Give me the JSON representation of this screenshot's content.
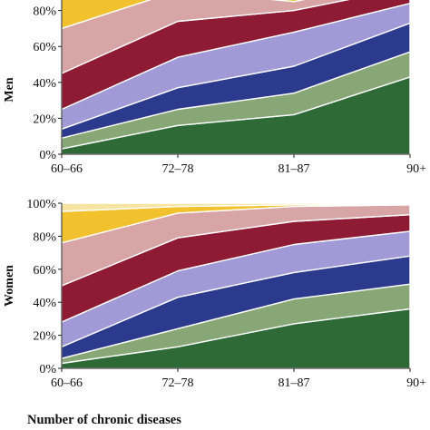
{
  "chart_data": [
    {
      "type": "area",
      "stacked": true,
      "title": "",
      "ylabel": "Men",
      "xlabel": "",
      "ylim": [
        0,
        100
      ],
      "y_unit": "%",
      "grid": false,
      "categories": [
        "60–66",
        "72–78",
        "81–87",
        "90+"
      ],
      "yticks": [
        "0%",
        "20%",
        "40%",
        "60%",
        "80%"
      ],
      "series": [
        {
          "color": "#2d6a35",
          "values": [
            3,
            16,
            22,
            43
          ]
        },
        {
          "color": "#88a777",
          "values": [
            6,
            9,
            12,
            14
          ]
        },
        {
          "color": "#2b3a8c",
          "values": [
            5,
            12,
            15,
            16
          ]
        },
        {
          "color": "#a29ad6",
          "values": [
            11,
            17,
            19,
            11
          ]
        },
        {
          "color": "#8e1a34",
          "values": [
            20,
            20,
            12,
            9
          ]
        },
        {
          "color": "#d8a5a6",
          "values": [
            25,
            17,
            5,
            5
          ]
        },
        {
          "color": "#f2c22e",
          "values": [
            28,
            2,
            2,
            1
          ]
        },
        {
          "color": "#f6e4a2",
          "values": [
            2,
            7,
            13,
            1
          ]
        }
      ]
    },
    {
      "type": "area",
      "stacked": true,
      "title": "",
      "ylabel": "Women",
      "xlabel": "Number of chronic diseases",
      "ylim": [
        0,
        100
      ],
      "y_unit": "%",
      "grid": false,
      "categories": [
        "60–66",
        "72–78",
        "81–87",
        "90+"
      ],
      "yticks": [
        "0%",
        "20%",
        "40%",
        "60%",
        "80%",
        "100%"
      ],
      "series": [
        {
          "color": "#2d6a35",
          "values": [
            3,
            13,
            27,
            36
          ]
        },
        {
          "color": "#88a777",
          "values": [
            3,
            11,
            15,
            15
          ]
        },
        {
          "color": "#2b3a8c",
          "values": [
            7,
            19,
            16,
            17
          ]
        },
        {
          "color": "#a29ad6",
          "values": [
            15,
            16,
            17,
            15
          ]
        },
        {
          "color": "#8e1a34",
          "values": [
            22,
            20,
            14,
            10
          ]
        },
        {
          "color": "#d8a5a6",
          "values": [
            26,
            15,
            9,
            6
          ]
        },
        {
          "color": "#f2c22e",
          "values": [
            19,
            4,
            1,
            0.5
          ]
        },
        {
          "color": "#f6e4a2",
          "values": [
            5,
            2,
            1,
            0.5
          ]
        }
      ]
    }
  ]
}
